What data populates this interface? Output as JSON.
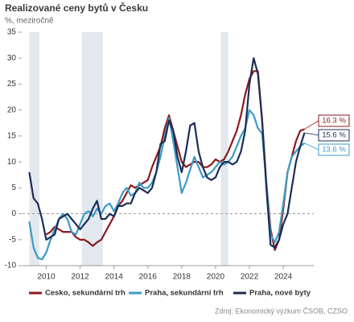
{
  "chart_data": {
    "type": "line",
    "title": "Realizované ceny bytů v Česku",
    "subtitle": "%, meziročně",
    "source": "Zdroj: Ekonomický výzkum ČSOB, CZSO",
    "xlim": [
      2008.6,
      2025.8
    ],
    "xticks": [
      2010,
      2012,
      2014,
      2016,
      2018,
      2020,
      2022,
      2024
    ],
    "ylim": [
      -10,
      35
    ],
    "yticks": [
      -10,
      -5,
      0,
      5,
      10,
      15,
      20,
      25,
      30,
      35
    ],
    "zero_line": true,
    "shaded_ranges": [
      [
        2009.0,
        2009.6
      ],
      [
        2012.1,
        2013.35
      ],
      [
        2020.3,
        2020.75
      ]
    ],
    "shade_color": "#e3e8ef",
    "x": [
      2009,
      2009.25,
      2009.5,
      2009.75,
      2010,
      2010.25,
      2010.5,
      2010.75,
      2011,
      2011.25,
      2011.5,
      2011.75,
      2012,
      2012.25,
      2012.5,
      2012.75,
      2013,
      2013.25,
      2013.5,
      2013.75,
      2014,
      2014.25,
      2014.5,
      2014.75,
      2015,
      2015.25,
      2015.5,
      2015.75,
      2016,
      2016.25,
      2016.5,
      2016.75,
      2017,
      2017.25,
      2017.5,
      2017.75,
      2018,
      2018.25,
      2018.5,
      2018.75,
      2019,
      2019.25,
      2019.5,
      2019.75,
      2020,
      2020.25,
      2020.5,
      2020.75,
      2021,
      2021.25,
      2021.5,
      2021.75,
      2022,
      2022.25,
      2022.5,
      2022.75,
      2023,
      2023.25,
      2023.5,
      2023.75,
      2024,
      2024.25,
      2024.5,
      2024.75,
      2025,
      2025.25
    ],
    "series": [
      {
        "name": "Cesko, sekundární trh",
        "color": "#8b1a1f",
        "end_label": "16.3 %",
        "values": [
          null,
          null,
          null,
          null,
          -4,
          -3.5,
          -2.5,
          -3,
          -3.5,
          -3.5,
          -3.5,
          -4.5,
          -5,
          -5,
          -5.5,
          -6.2,
          -5.5,
          -5,
          -3.5,
          -2,
          -0.5,
          1.5,
          2.5,
          4,
          5.5,
          5,
          5.5,
          6,
          6.5,
          9,
          11,
          13,
          16.5,
          19,
          16,
          13,
          10,
          9,
          9.5,
          10,
          10,
          9,
          9,
          9.5,
          10.5,
          10,
          10.5,
          12,
          14,
          16,
          19,
          23,
          26,
          27.5,
          27.5,
          18,
          6,
          -3,
          -7,
          -5,
          1,
          8,
          11,
          14,
          16,
          16.3
        ]
      },
      {
        "name": "Praha, sekundární trh",
        "color": "#3a9cc8",
        "end_label": "13.6 %",
        "values": [
          -1.5,
          -6.5,
          -8.5,
          -8.8,
          -7.5,
          -5,
          -3,
          -1,
          0,
          -1,
          -3.5,
          -4,
          -2,
          0,
          0.5,
          -0.5,
          1,
          0,
          1.5,
          2,
          0.5,
          2,
          4,
          5,
          3.5,
          4,
          6,
          5,
          5,
          6,
          8,
          11,
          15,
          18.5,
          14,
          9,
          4,
          6,
          8.5,
          11,
          9,
          7,
          7.5,
          8,
          9,
          10,
          9.5,
          10,
          11,
          13,
          15,
          16.5,
          20,
          19,
          16.5,
          15.5,
          6,
          -4,
          -5.5,
          -3.5,
          2,
          8,
          11,
          12,
          13,
          13.6
        ]
      },
      {
        "name": "Praha, nové byty",
        "color": "#1b2d55",
        "end_label": "15.6 %",
        "values": [
          8,
          3,
          2,
          -1,
          -5,
          -4.5,
          -4,
          -1,
          -0.5,
          0,
          -1,
          -2,
          -3,
          -2,
          -1,
          1,
          2.5,
          -1,
          -1,
          0,
          -0.5,
          1.5,
          1.5,
          2,
          2,
          4,
          5,
          4.5,
          4,
          5,
          8,
          13.5,
          14,
          18,
          16,
          11,
          8,
          12,
          17,
          17.5,
          12,
          9,
          7,
          6.5,
          7,
          9,
          10,
          10,
          9.5,
          10,
          12,
          16,
          25,
          30,
          27,
          18,
          5,
          -6,
          -6.5,
          -5,
          -2,
          0,
          5,
          10,
          13,
          15.6
        ]
      }
    ]
  }
}
